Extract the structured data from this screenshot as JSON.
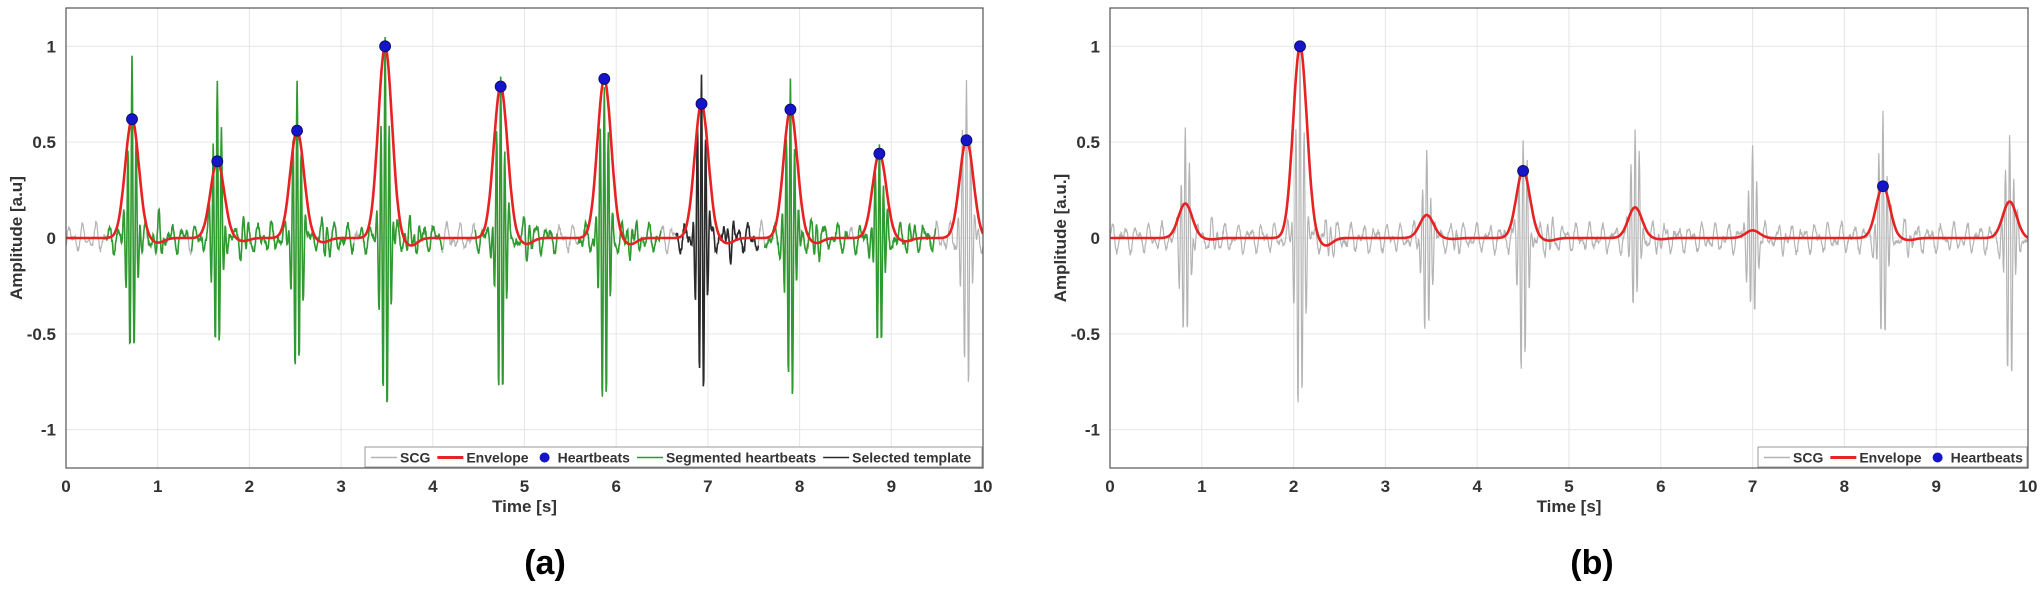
{
  "chart_data": [
    {
      "panel_label": "(a)",
      "type": "line",
      "xlabel": "Time [s]",
      "ylabel": "Amplitude [a.u]",
      "xlim": [
        0,
        10
      ],
      "ylim": [
        -1.2,
        1.2
      ],
      "xticks": [
        "0",
        "1",
        "2",
        "3",
        "4",
        "5",
        "6",
        "7",
        "8",
        "9",
        "10"
      ],
      "yticks": [
        "-1",
        "-0.5",
        "0",
        "0.5",
        "1"
      ],
      "grid": true,
      "legend_position": "bottom-right",
      "legend": [
        "SCG",
        "Envelope",
        "Heartbeats",
        "Segmented heartbeats",
        "Selected template"
      ],
      "colors": {
        "SCG": "#b4b4b4",
        "Envelope": "#e62222",
        "Heartbeats": "#1414c8",
        "Segmented heartbeats": "#2f9a2f",
        "Selected template": "#2a2a2a"
      },
      "heartbeats": [
        {
          "t": 0.72,
          "y": 0.62
        },
        {
          "t": 1.65,
          "y": 0.4
        },
        {
          "t": 2.52,
          "y": 0.56
        },
        {
          "t": 3.48,
          "y": 1.0
        },
        {
          "t": 4.74,
          "y": 0.79
        },
        {
          "t": 5.87,
          "y": 0.83
        },
        {
          "t": 6.93,
          "y": 0.7
        },
        {
          "t": 7.9,
          "y": 0.67
        },
        {
          "t": 8.87,
          "y": 0.44
        },
        {
          "t": 9.82,
          "y": 0.51
        }
      ],
      "scg_bursts": [
        {
          "t": 0.72,
          "max": 0.88,
          "min": -0.68
        },
        {
          "t": 1.65,
          "max": 0.86,
          "min": -0.62
        },
        {
          "t": 2.52,
          "max": 0.8,
          "min": -0.78
        },
        {
          "t": 3.48,
          "max": 1.0,
          "min": -1.0
        },
        {
          "t": 4.74,
          "max": 0.85,
          "min": -0.9
        },
        {
          "t": 5.87,
          "max": 0.85,
          "min": -0.95
        },
        {
          "t": 6.93,
          "max": 0.88,
          "min": -0.88
        },
        {
          "t": 7.9,
          "max": 0.82,
          "min": -0.88
        },
        {
          "t": 8.87,
          "max": 0.5,
          "min": -0.6
        },
        {
          "t": 9.82,
          "max": 0.85,
          "min": -0.8
        }
      ],
      "segmented_beats": [
        0,
        1,
        2,
        3,
        4,
        5,
        7,
        8
      ],
      "selected_template_beat": 6
    },
    {
      "panel_label": "(b)",
      "type": "line",
      "xlabel": "Time [s]",
      "ylabel": "Amplitude [a.u.]",
      "xlim": [
        0,
        10
      ],
      "ylim": [
        -1.2,
        1.2
      ],
      "xticks": [
        "0",
        "1",
        "2",
        "3",
        "4",
        "5",
        "6",
        "7",
        "8",
        "9",
        "10"
      ],
      "yticks": [
        "-1",
        "-0.5",
        "0",
        "0.5",
        "1"
      ],
      "grid": true,
      "legend_position": "bottom-right",
      "legend": [
        "SCG",
        "Envelope",
        "Heartbeats"
      ],
      "colors": {
        "SCG": "#b4b4b4",
        "Envelope": "#e62222",
        "Heartbeats": "#1414c8"
      },
      "envelope_peaks": [
        {
          "t": 0.82,
          "y": 0.18
        },
        {
          "t": 2.07,
          "y": 1.0
        },
        {
          "t": 3.45,
          "y": 0.12
        },
        {
          "t": 4.5,
          "y": 0.35
        },
        {
          "t": 5.72,
          "y": 0.16
        },
        {
          "t": 7.0,
          "y": 0.04
        },
        {
          "t": 8.42,
          "y": 0.27
        },
        {
          "t": 9.8,
          "y": 0.19
        }
      ],
      "heartbeats": [
        {
          "t": 2.07,
          "y": 1.0
        },
        {
          "t": 4.5,
          "y": 0.35
        },
        {
          "t": 8.42,
          "y": 0.27
        }
      ],
      "scg_bursts": [
        {
          "t": 0.82,
          "max": 0.55,
          "min": -0.58
        },
        {
          "t": 2.07,
          "max": 0.95,
          "min": -1.0
        },
        {
          "t": 3.45,
          "max": 0.42,
          "min": -0.55
        },
        {
          "t": 4.5,
          "max": 0.55,
          "min": -0.75
        },
        {
          "t": 5.72,
          "max": 0.62,
          "min": -0.35
        },
        {
          "t": 7.0,
          "max": 0.45,
          "min": -0.45
        },
        {
          "t": 8.42,
          "max": 0.65,
          "min": -0.55
        },
        {
          "t": 9.8,
          "max": 0.55,
          "min": -0.78
        }
      ]
    }
  ]
}
